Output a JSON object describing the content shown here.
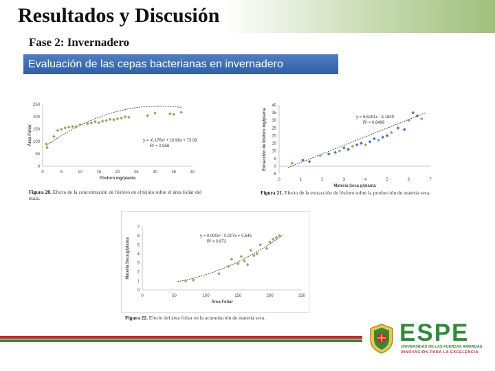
{
  "slide": {
    "title": "Resultados y Discusión",
    "subtitle": "Fase 2: Invernadero",
    "banner": "Evaluación de las cepas bacterianas en invernadero"
  },
  "charts": {
    "fig20": {
      "ylabel": "Área Foliar",
      "xlabel": "Fósforo mg/planta",
      "equation": "y = -0,176x² + 10,96x + 73,09",
      "r2": "R² = 0,958",
      "yticks": [
        "250",
        "200",
        "150",
        "100",
        "50",
        "0"
      ],
      "xticks": [
        "0",
        "5",
        "10",
        "15",
        "20",
        "25",
        "30",
        "35",
        "40"
      ],
      "caption_fig": "Figura 20.",
      "caption_text": "Efecto de la concentración de fósforo en el tejido sobre el área foliar del",
      "caption_text2": "maíz."
    },
    "fig21": {
      "ylabel": "Extracción de fósforo mg/planta",
      "xlabel": "Materia Seca g/planta",
      "equation": "y = 5,6291x - 3,1849",
      "r2": "R² = 0,8498",
      "yticks": [
        "40",
        "35",
        "30",
        "25",
        "20",
        "15",
        "10",
        "5",
        "0",
        "-5"
      ],
      "xticks": [
        "0",
        "1",
        "2",
        "3",
        "4",
        "5",
        "6",
        "7"
      ],
      "caption_fig": "Figura 21.",
      "caption_text": "Efecto de la extracción de fósforo sobre la producción de materia seca."
    },
    "fig22": {
      "ylabel": "Materia Seca g/planta",
      "xlabel": "Área Foliar",
      "equation": "y = 0,000x² - 0,007x + 0,545",
      "r2": "R² = 0,872",
      "yticks": [
        "7",
        "6",
        "5",
        "4",
        "3",
        "2",
        "1",
        "0"
      ],
      "xticks": [
        "0",
        "50",
        "100",
        "150",
        "200",
        "250"
      ],
      "caption_fig": "Figura 22.",
      "caption_text": "Efecto del área foliar en la acumulación de materia seca."
    }
  },
  "chart_data": [
    {
      "type": "scatter",
      "xlabel": "Fósforo mg/planta",
      "ylabel": "Área Foliar",
      "xlim": [
        0,
        40
      ],
      "ylim": [
        0,
        250
      ],
      "trendline": "polynomial",
      "series": [
        {
          "x": [
            1,
            1.2,
            3,
            4,
            5,
            6,
            7,
            8,
            9,
            10,
            12,
            13,
            14,
            15,
            16,
            17,
            18,
            19,
            20,
            21,
            22,
            23,
            28,
            30,
            34,
            35,
            37
          ],
          "y": [
            90,
            75,
            120,
            145,
            150,
            155,
            158,
            160,
            160,
            168,
            172,
            175,
            180,
            176,
            182,
            185,
            190,
            188,
            192,
            195,
            200,
            198,
            205,
            215,
            212,
            210,
            218
          ]
        }
      ]
    },
    {
      "type": "scatter",
      "xlabel": "Materia Seca g/planta",
      "ylabel": "Extracción de fósforo mg/planta",
      "xlim": [
        0,
        7
      ],
      "ylim": [
        -5,
        40
      ],
      "trendline": "linear",
      "series": [
        {
          "x": [
            0.6,
            1.1,
            1.4,
            1.9,
            2.3,
            2.6,
            2.8,
            3.0,
            3.2,
            3.4,
            3.6,
            3.8,
            4.0,
            4.2,
            4.4,
            4.6,
            4.8,
            5.0,
            5.2,
            5.5,
            5.8,
            6.0,
            6.2,
            6.4,
            6.6
          ],
          "y": [
            2,
            4,
            3,
            7,
            8,
            9,
            10,
            12,
            11,
            13,
            14,
            15,
            14,
            16,
            18,
            17,
            19,
            20,
            22,
            25,
            24,
            30,
            35,
            33,
            31
          ]
        }
      ]
    },
    {
      "type": "scatter",
      "xlabel": "Área Foliar",
      "ylabel": "Materia Seca g/planta",
      "xlim": [
        0,
        250
      ],
      "ylim": [
        0,
        7
      ],
      "trendline": "polynomial",
      "series": [
        {
          "x": [
            68,
            80,
            120,
            135,
            140,
            150,
            155,
            160,
            165,
            170,
            175,
            180,
            185,
            195,
            200,
            205,
            210,
            215
          ],
          "y": [
            1.0,
            1.1,
            1.8,
            2.6,
            3.4,
            2.9,
            3.7,
            3.2,
            2.8,
            4.4,
            3.8,
            4.0,
            5.0,
            4.6,
            5.3,
            5.6,
            5.8,
            6.0
          ]
        }
      ]
    }
  ],
  "branding": {
    "logo_text": "ESPE",
    "university": "UNIVERSIDAD DE LAS FUERZAS ARMADAS",
    "motto": "INNOVACIÓN PARA LA EXCELENCIA",
    "green": "#2e8b3a",
    "red": "#d3262b",
    "banner_blue": "#2f5fa8",
    "point_color": "#8fb35a",
    "point_color_blue": "#4a76c4"
  }
}
